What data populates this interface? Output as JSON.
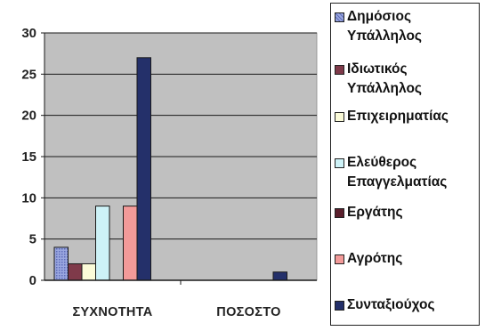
{
  "chart_data": {
    "type": "bar",
    "categories": [
      "ΣΥΧΝΟΤΗΤΑ",
      "ΠΟΣΟΣΤΟ"
    ],
    "series": [
      {
        "name": "Δημόσιος Υπάλληλος",
        "color": "#8f9cd8",
        "pattern": "dots",
        "values": [
          4,
          0
        ]
      },
      {
        "name": "Ιδιωτικός Υπάλληλος",
        "color": "#7f3a4a",
        "values": [
          2,
          0
        ]
      },
      {
        "name": "Επιχειρηματίας",
        "color": "#fbfbd8",
        "values": [
          2,
          0
        ]
      },
      {
        "name": "Ελεύθερος Επαγγελματίας",
        "color": "#cdf2f7",
        "values": [
          9,
          0
        ]
      },
      {
        "name": "Εργάτης",
        "color": "#5a1f2c",
        "values": [
          0,
          0
        ]
      },
      {
        "name": "Αγρότης",
        "color": "#f39a99",
        "values": [
          9,
          0
        ]
      },
      {
        "name": "Συνταξιούχος",
        "color": "#24306a",
        "values": [
          27,
          1
        ]
      }
    ],
    "yticks": [
      "0",
      "5",
      "10",
      "15",
      "20",
      "25",
      "30"
    ],
    "ylim": [
      0,
      30
    ],
    "grid": true,
    "legend_position": "right",
    "plot_background": "#c0c0c0"
  }
}
